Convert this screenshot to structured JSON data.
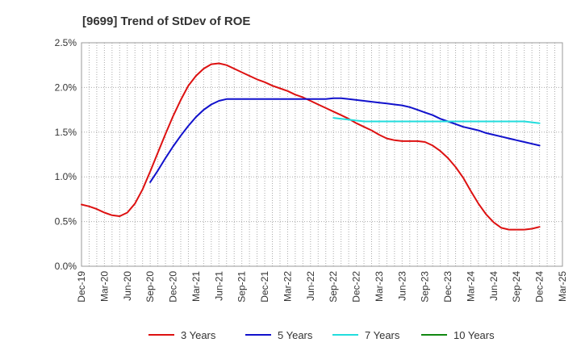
{
  "chart_data": {
    "type": "line",
    "title": "[9699]  Trend of StDev of ROE",
    "xlabel": "",
    "ylabel": "",
    "x_ticks": [
      "Dec-19",
      "Mar-20",
      "Jun-20",
      "Sep-20",
      "Dec-20",
      "Mar-21",
      "Jun-21",
      "Sep-21",
      "Dec-21",
      "Mar-22",
      "Jun-22",
      "Sep-22",
      "Dec-22",
      "Mar-23",
      "Jun-23",
      "Sep-23",
      "Dec-23",
      "Mar-24",
      "Jun-24",
      "Sep-24",
      "Dec-24",
      "Mar-25"
    ],
    "y_ticks": [
      "0.0%",
      "0.5%",
      "1.0%",
      "1.5%",
      "2.0%",
      "2.5%"
    ],
    "ylim": [
      0,
      2.5
    ],
    "grid": true,
    "legend_position": "bottom",
    "series": [
      {
        "name": "3 Years",
        "color": "#dd1111",
        "points": [
          [
            "Dec-19",
            0.69
          ],
          [
            "Jan-20",
            0.67
          ],
          [
            "Feb-20",
            0.64
          ],
          [
            "Mar-20",
            0.6
          ],
          [
            "Apr-20",
            0.57
          ],
          [
            "May-20",
            0.56
          ],
          [
            "Jun-20",
            0.6
          ],
          [
            "Jul-20",
            0.7
          ],
          [
            "Aug-20",
            0.86
          ],
          [
            "Sep-20",
            1.06
          ],
          [
            "Oct-20",
            1.27
          ],
          [
            "Nov-20",
            1.48
          ],
          [
            "Dec-20",
            1.68
          ],
          [
            "Jan-21",
            1.86
          ],
          [
            "Feb-21",
            2.02
          ],
          [
            "Mar-21",
            2.13
          ],
          [
            "Apr-21",
            2.21
          ],
          [
            "May-21",
            2.26
          ],
          [
            "Jun-21",
            2.27
          ],
          [
            "Jul-21",
            2.25
          ],
          [
            "Aug-21",
            2.21
          ],
          [
            "Sep-21",
            2.17
          ],
          [
            "Oct-21",
            2.13
          ],
          [
            "Nov-21",
            2.09
          ],
          [
            "Dec-21",
            2.06
          ],
          [
            "Jan-22",
            2.02
          ],
          [
            "Feb-22",
            1.99
          ],
          [
            "Mar-22",
            1.96
          ],
          [
            "Apr-22",
            1.92
          ],
          [
            "May-22",
            1.89
          ],
          [
            "Jun-22",
            1.85
          ],
          [
            "Jul-22",
            1.81
          ],
          [
            "Aug-22",
            1.77
          ],
          [
            "Sep-22",
            1.73
          ],
          [
            "Oct-22",
            1.69
          ],
          [
            "Nov-22",
            1.65
          ],
          [
            "Dec-22",
            1.6
          ],
          [
            "Jan-23",
            1.56
          ],
          [
            "Feb-23",
            1.52
          ],
          [
            "Mar-23",
            1.47
          ],
          [
            "Apr-23",
            1.43
          ],
          [
            "May-23",
            1.41
          ],
          [
            "Jun-23",
            1.4
          ],
          [
            "Jul-23",
            1.4
          ],
          [
            "Aug-23",
            1.4
          ],
          [
            "Sep-23",
            1.39
          ],
          [
            "Oct-23",
            1.35
          ],
          [
            "Nov-23",
            1.29
          ],
          [
            "Dec-23",
            1.21
          ],
          [
            "Jan-24",
            1.11
          ],
          [
            "Feb-24",
            0.99
          ],
          [
            "Mar-24",
            0.84
          ],
          [
            "Apr-24",
            0.7
          ],
          [
            "May-24",
            0.58
          ],
          [
            "Jun-24",
            0.49
          ],
          [
            "Jul-24",
            0.43
          ],
          [
            "Aug-24",
            0.41
          ],
          [
            "Sep-24",
            0.41
          ],
          [
            "Oct-24",
            0.41
          ],
          [
            "Nov-24",
            0.42
          ],
          [
            "Dec-24",
            0.44
          ]
        ]
      },
      {
        "name": "5 Years",
        "color": "#1111cc",
        "points": [
          [
            "Sep-20",
            0.94
          ],
          [
            "Oct-20",
            1.07
          ],
          [
            "Nov-20",
            1.21
          ],
          [
            "Dec-20",
            1.34
          ],
          [
            "Jan-21",
            1.46
          ],
          [
            "Feb-21",
            1.57
          ],
          [
            "Mar-21",
            1.67
          ],
          [
            "Apr-21",
            1.75
          ],
          [
            "May-21",
            1.81
          ],
          [
            "Jun-21",
            1.85
          ],
          [
            "Jul-21",
            1.87
          ],
          [
            "Aug-21",
            1.87
          ],
          [
            "Sep-21",
            1.87
          ],
          [
            "Oct-21",
            1.87
          ],
          [
            "Nov-21",
            1.87
          ],
          [
            "Dec-21",
            1.87
          ],
          [
            "Jan-22",
            1.87
          ],
          [
            "Feb-22",
            1.87
          ],
          [
            "Mar-22",
            1.87
          ],
          [
            "Apr-22",
            1.87
          ],
          [
            "May-22",
            1.87
          ],
          [
            "Jun-22",
            1.87
          ],
          [
            "Jul-22",
            1.87
          ],
          [
            "Aug-22",
            1.87
          ],
          [
            "Sep-22",
            1.88
          ],
          [
            "Oct-22",
            1.88
          ],
          [
            "Nov-22",
            1.87
          ],
          [
            "Dec-22",
            1.86
          ],
          [
            "Jan-23",
            1.85
          ],
          [
            "Feb-23",
            1.84
          ],
          [
            "Mar-23",
            1.83
          ],
          [
            "Apr-23",
            1.82
          ],
          [
            "May-23",
            1.81
          ],
          [
            "Jun-23",
            1.8
          ],
          [
            "Jul-23",
            1.78
          ],
          [
            "Aug-23",
            1.75
          ],
          [
            "Sep-23",
            1.72
          ],
          [
            "Oct-23",
            1.69
          ],
          [
            "Nov-23",
            1.65
          ],
          [
            "Dec-23",
            1.62
          ],
          [
            "Jan-24",
            1.59
          ],
          [
            "Feb-24",
            1.56
          ],
          [
            "Mar-24",
            1.54
          ],
          [
            "Apr-24",
            1.52
          ],
          [
            "May-24",
            1.49
          ],
          [
            "Jun-24",
            1.47
          ],
          [
            "Jul-24",
            1.45
          ],
          [
            "Aug-24",
            1.43
          ],
          [
            "Sep-24",
            1.41
          ],
          [
            "Oct-24",
            1.39
          ],
          [
            "Nov-24",
            1.37
          ],
          [
            "Dec-24",
            1.35
          ]
        ]
      },
      {
        "name": "7 Years",
        "color": "#22dddd",
        "points": [
          [
            "Sep-22",
            1.66
          ],
          [
            "Oct-22",
            1.65
          ],
          [
            "Nov-22",
            1.64
          ],
          [
            "Dec-22",
            1.63
          ],
          [
            "Jan-23",
            1.62
          ],
          [
            "Feb-23",
            1.62
          ],
          [
            "Mar-23",
            1.62
          ],
          [
            "Apr-23",
            1.62
          ],
          [
            "May-23",
            1.62
          ],
          [
            "Jun-23",
            1.62
          ],
          [
            "Jul-23",
            1.62
          ],
          [
            "Aug-23",
            1.62
          ],
          [
            "Sep-23",
            1.62
          ],
          [
            "Oct-23",
            1.62
          ],
          [
            "Nov-23",
            1.62
          ],
          [
            "Dec-23",
            1.62
          ],
          [
            "Jan-24",
            1.62
          ],
          [
            "Feb-24",
            1.62
          ],
          [
            "Mar-24",
            1.62
          ],
          [
            "Apr-24",
            1.62
          ],
          [
            "May-24",
            1.62
          ],
          [
            "Jun-24",
            1.62
          ],
          [
            "Jul-24",
            1.62
          ],
          [
            "Aug-24",
            1.62
          ],
          [
            "Sep-24",
            1.62
          ],
          [
            "Oct-24",
            1.62
          ],
          [
            "Nov-24",
            1.61
          ],
          [
            "Dec-24",
            1.6
          ]
        ]
      },
      {
        "name": "10 Years",
        "color": "#118811",
        "points": []
      }
    ]
  }
}
